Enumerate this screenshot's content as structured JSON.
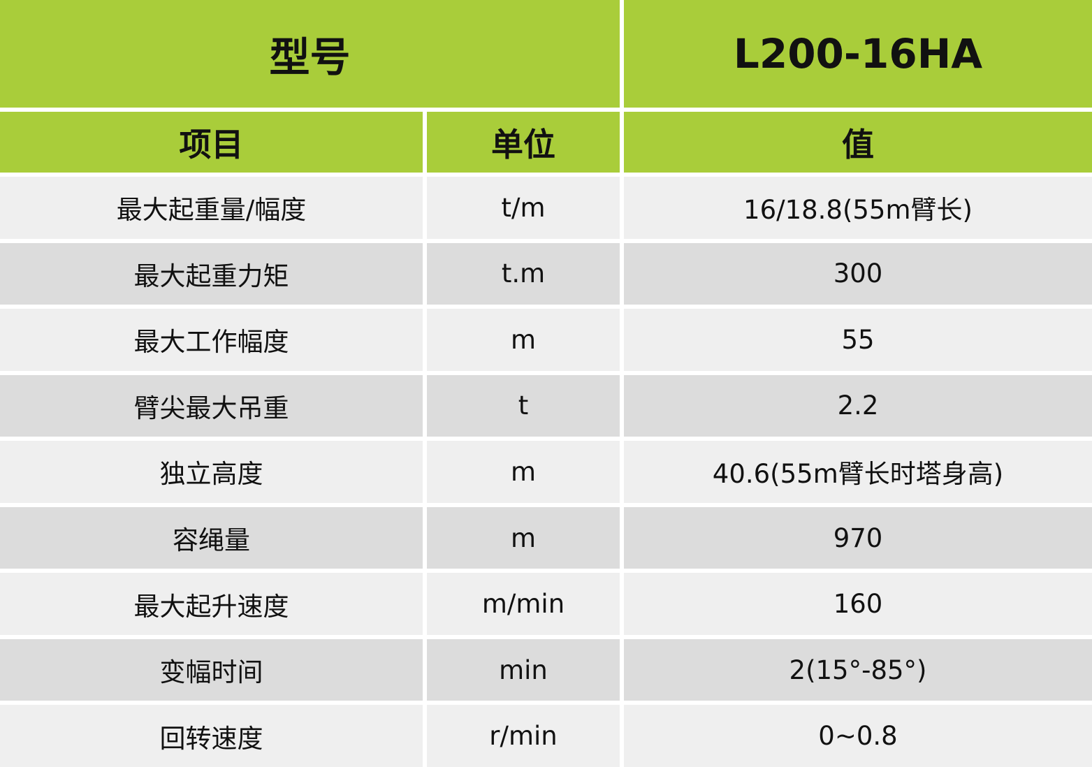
{
  "table": {
    "title": [
      "型号",
      "L200-16HA"
    ],
    "header": [
      "项目",
      "单位",
      "值"
    ],
    "rows": [
      [
        "最大起重量/幅度",
        "t/m",
        "16/18.8(55m臂长)"
      ],
      [
        "最大起重力矩",
        "t.m",
        "300"
      ],
      [
        "最大工作幅度",
        "m",
        "55"
      ],
      [
        "臂尖最大吊重",
        "t",
        "2.2"
      ],
      [
        "独立高度",
        "m",
        "40.6(55m臂长时塔身高)"
      ],
      [
        "容绳量",
        "m",
        "970"
      ],
      [
        "最大起升速度",
        "m/min",
        "160"
      ],
      [
        "变幅时间",
        "min",
        "2(15°-85°)"
      ],
      [
        "回转速度",
        "r/min",
        "0~0.8"
      ]
    ]
  }
}
